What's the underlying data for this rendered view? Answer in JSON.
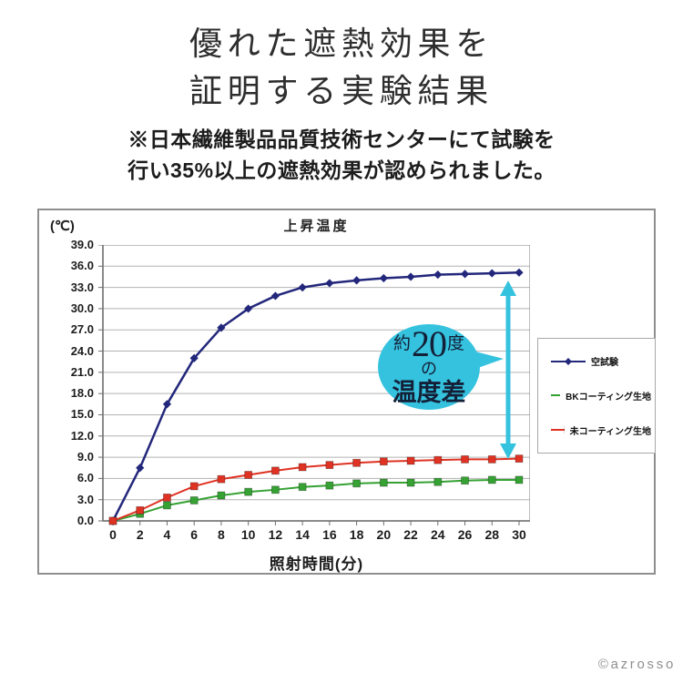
{
  "page": {
    "title_line1": "優れた遮熱効果を",
    "title_line2": "証明する実験結果",
    "note_line1": "※日本繊維製品品質技術センターにて試験を",
    "note_line2": "行い35%以上の遮熱効果が認められました。",
    "watermark": "©azrosso"
  },
  "callout": {
    "prefix": "約",
    "number": "20",
    "suffix": "度",
    "middle": "の",
    "bottom": "温度差"
  },
  "colors": {
    "accent_cyan": "#35c2de",
    "series_blank": "#23277b",
    "series_bk": "#35a233",
    "series_uncoated": "#df3222",
    "gridline": "#b3b3b3",
    "frame": "#9a9a9a"
  },
  "chart_data": {
    "type": "line",
    "title": "上昇温度",
    "y_unit_label": "(℃)",
    "xlabel": "照射時間(分)",
    "ylabel": "",
    "ylim": [
      0,
      39
    ],
    "y_tick_step": 3.0,
    "y_tick_labels": [
      "39.0",
      "36.0",
      "33.0",
      "30.0",
      "27.0",
      "24.0",
      "21.0",
      "18.0",
      "15.0",
      "12.0",
      "9.0",
      "6.0",
      "3.0",
      "0.0"
    ],
    "x": [
      0,
      2,
      4,
      6,
      8,
      10,
      12,
      14,
      16,
      18,
      20,
      22,
      24,
      26,
      28,
      30
    ],
    "x_tick_labels": [
      "0",
      "2",
      "4",
      "6",
      "8",
      "10",
      "12",
      "14",
      "16",
      "18",
      "20",
      "22",
      "24",
      "26",
      "28",
      "30"
    ],
    "grid": "horizontal only, every 3.0°C",
    "legend_position": "right",
    "series": [
      {
        "name": "空試験",
        "color": "#23277b",
        "marker": "diamond",
        "values": [
          0,
          7.5,
          16.5,
          23.0,
          27.3,
          30.0,
          31.8,
          33.0,
          33.6,
          34.0,
          34.3,
          34.5,
          34.8,
          34.9,
          35.0,
          35.1
        ]
      },
      {
        "name": "BKコーティング生地",
        "color": "#35a233",
        "marker": "square",
        "values": [
          0,
          1.0,
          2.2,
          2.9,
          3.6,
          4.1,
          4.4,
          4.8,
          5.0,
          5.3,
          5.4,
          5.4,
          5.5,
          5.7,
          5.8,
          5.8
        ]
      },
      {
        "name": "未コーティング生地",
        "color": "#df3222",
        "marker": "square",
        "values": [
          0,
          1.5,
          3.3,
          4.9,
          5.9,
          6.5,
          7.1,
          7.6,
          7.9,
          8.2,
          8.4,
          8.5,
          8.6,
          8.7,
          8.7,
          8.8
        ]
      }
    ],
    "annotation": {
      "text": "約20度の温度差",
      "arrow": "vertical double-headed arrow at x=30 between 空試験 line and 未コーティング生地 line"
    }
  }
}
